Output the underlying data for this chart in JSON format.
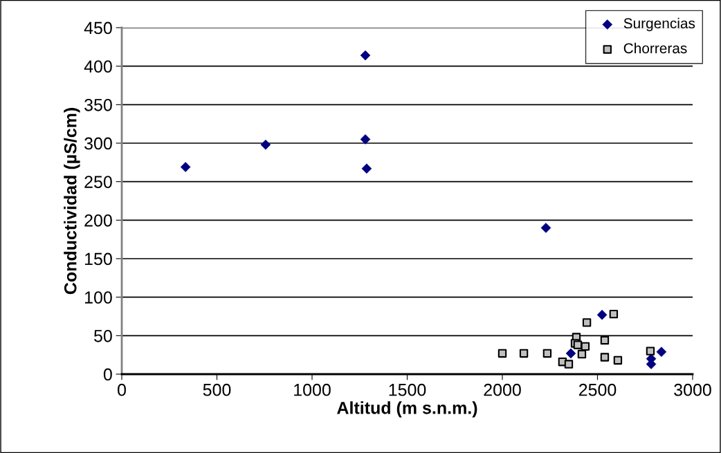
{
  "chart_data": {
    "type": "scatter",
    "xlabel": "Altitud (m s.n.m.)",
    "ylabel": "Conductividad (µS/cm)",
    "xlim": [
      0,
      3000
    ],
    "xticks": [
      0,
      500,
      1000,
      1500,
      2000,
      2500,
      3000
    ],
    "ylim": [
      0,
      450
    ],
    "yticks": [
      0,
      50,
      100,
      150,
      200,
      250,
      300,
      350,
      400,
      450
    ],
    "grid": "y",
    "legend": "top right",
    "series": [
      {
        "name": "Surgencias",
        "color": "#000080",
        "marker": "diamond",
        "x": [
          335,
          756,
          1280,
          1280,
          1287,
          2229,
          2524,
          2360,
          2782,
          2782,
          2836
        ],
        "values": [
          269,
          298,
          414,
          305,
          267,
          190,
          77,
          27,
          20,
          13,
          29
        ]
      },
      {
        "name": "Chorreras",
        "color": "#c0c0c0",
        "marker": "square",
        "x": [
          2000,
          2113,
          2236,
          2585,
          2444,
          2389,
          2382,
          2396,
          2436,
          2418,
          2316,
          2349,
          2538,
          2538,
          2607,
          2778
        ],
        "values": [
          27,
          27,
          27,
          78,
          67,
          48,
          40,
          38,
          36,
          26,
          16,
          13,
          44,
          22,
          18,
          30
        ]
      }
    ]
  }
}
